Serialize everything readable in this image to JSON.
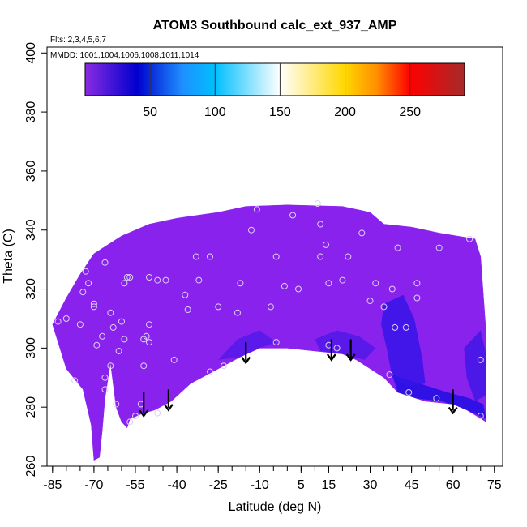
{
  "chart_data": {
    "type": "heatmap",
    "title": "ATOM3 Southbound calc_ext_937_AMP",
    "flights_note": "Flts: 2,3,4,5,6,7",
    "dates_note": "MMDD: 1001,1004,1006,1008,1011,1014",
    "xlabel": "Latitude (deg N)",
    "ylabel": "Theta (C)",
    "xlim": [
      -87,
      78
    ],
    "ylim": [
      260,
      402
    ],
    "x_ticks": [
      -85,
      -70,
      -55,
      -40,
      -25,
      -10,
      5,
      15,
      30,
      45,
      60,
      75
    ],
    "x_tick_labels": [
      "-85",
      "-70",
      "-55",
      "-40",
      "-25",
      "-10",
      "5",
      "15",
      "30",
      "45",
      "60",
      "75"
    ],
    "y_ticks": [
      260,
      280,
      300,
      320,
      340,
      360,
      380,
      400
    ],
    "y_tick_labels": [
      "260",
      "280",
      "300",
      "320",
      "340",
      "360",
      "380",
      "400"
    ],
    "colorbar": {
      "range": [
        0,
        292
      ],
      "ticks": [
        50,
        100,
        150,
        200,
        250
      ],
      "tick_labels": [
        "50",
        "100",
        "150",
        "200",
        "250"
      ],
      "stops": [
        {
          "v": 0,
          "c": "#8a2be2"
        },
        {
          "v": 40,
          "c": "#0000cd"
        },
        {
          "v": 75,
          "c": "#1e90ff"
        },
        {
          "v": 100,
          "c": "#00bfff"
        },
        {
          "v": 150,
          "c": "#ffffff"
        },
        {
          "v": 200,
          "c": "#ffd700"
        },
        {
          "v": 225,
          "c": "#ff8c00"
        },
        {
          "v": 250,
          "c": "#ff0000"
        },
        {
          "v": 292,
          "c": "#a52a2a"
        }
      ]
    },
    "field_color": "#8a22ee",
    "domain_upper": [
      [
        -85,
        308
      ],
      [
        -80,
        317
      ],
      [
        -75,
        325
      ],
      [
        -70,
        332
      ],
      [
        -60,
        338
      ],
      [
        -50,
        342
      ],
      [
        -40,
        344
      ],
      [
        -25,
        346
      ],
      [
        -15,
        348
      ],
      [
        0,
        348.5
      ],
      [
        20,
        348
      ],
      [
        30,
        346
      ],
      [
        35,
        342
      ],
      [
        45,
        341
      ],
      [
        55,
        339
      ],
      [
        68,
        337
      ],
      [
        70,
        331
      ],
      [
        72,
        305
      ]
    ],
    "domain_lower": [
      [
        72,
        275
      ],
      [
        65,
        279
      ],
      [
        60,
        281
      ],
      [
        50,
        282
      ],
      [
        40,
        285
      ],
      [
        35,
        290
      ],
      [
        25,
        296
      ],
      [
        20,
        298
      ],
      [
        10,
        299
      ],
      [
        0,
        300
      ],
      [
        -10,
        300
      ],
      [
        -17,
        297
      ],
      [
        -25,
        293
      ],
      [
        -35,
        288
      ],
      [
        -42,
        282
      ],
      [
        -48,
        279
      ],
      [
        -52,
        278
      ],
      [
        -57,
        276
      ],
      [
        -58,
        273
      ],
      [
        -60,
        275
      ],
      [
        -62,
        280
      ],
      [
        -64,
        295
      ],
      [
        -66,
        283
      ],
      [
        -67,
        272
      ],
      [
        -68,
        263
      ],
      [
        -70,
        262
      ],
      [
        -71,
        274
      ],
      [
        -74,
        286
      ],
      [
        -80,
        293
      ]
    ],
    "blue_patches": [
      {
        "color": "#1f0ee3",
        "poly": [
          [
            38,
            291
          ],
          [
            48,
            288
          ],
          [
            58,
            285
          ],
          [
            66,
            283
          ],
          [
            71,
            281
          ],
          [
            72,
            276
          ],
          [
            65,
            279
          ],
          [
            56,
            282
          ],
          [
            46,
            283
          ],
          [
            40,
            285
          ]
        ]
      },
      {
        "color": "#3514e6",
        "poly": [
          [
            35,
            315
          ],
          [
            42,
            318
          ],
          [
            46,
            310
          ],
          [
            49,
            296
          ],
          [
            50,
            288
          ],
          [
            44,
            287
          ],
          [
            38,
            290
          ],
          [
            36,
            300
          ],
          [
            34,
            308
          ]
        ]
      },
      {
        "color": "#5019e8",
        "poly": [
          [
            10,
            303
          ],
          [
            18,
            306
          ],
          [
            26,
            304
          ],
          [
            32,
            300
          ],
          [
            28,
            296
          ],
          [
            20,
            298
          ],
          [
            12,
            299
          ]
        ]
      },
      {
        "color": "#5219e8",
        "poly": [
          [
            -25,
            296
          ],
          [
            -18,
            303
          ],
          [
            -10,
            306
          ],
          [
            -4,
            302
          ],
          [
            -10,
            300
          ],
          [
            -17,
            297
          ]
        ]
      },
      {
        "color": "#3f16e6",
        "poly": [
          [
            64,
            300
          ],
          [
            70,
            306
          ],
          [
            72,
            298
          ],
          [
            72,
            284
          ],
          [
            68,
            282
          ],
          [
            65,
            290
          ]
        ]
      }
    ],
    "obs_points": [
      [
        -83,
        309
      ],
      [
        -80,
        310
      ],
      [
        -77,
        289
      ],
      [
        -75,
        308
      ],
      [
        -74,
        319
      ],
      [
        -73,
        326
      ],
      [
        -72,
        322
      ],
      [
        -70,
        315
      ],
      [
        -70,
        314
      ],
      [
        -69,
        301
      ],
      [
        -67,
        304
      ],
      [
        -66,
        290
      ],
      [
        -66,
        286
      ],
      [
        -66,
        329
      ],
      [
        -64,
        312
      ],
      [
        -64,
        294
      ],
      [
        -63,
        307
      ],
      [
        -62,
        281
      ],
      [
        -61,
        299
      ],
      [
        -60,
        309
      ],
      [
        -59,
        303
      ],
      [
        -59,
        322
      ],
      [
        -58,
        324
      ],
      [
        -57,
        324
      ],
      [
        -52,
        303
      ],
      [
        -52,
        294
      ],
      [
        -51,
        304
      ],
      [
        -50,
        308
      ],
      [
        -50,
        302
      ],
      [
        -50,
        324
      ],
      [
        -47,
        323
      ],
      [
        -44,
        323
      ],
      [
        -41,
        296
      ],
      [
        -37,
        318
      ],
      [
        -36,
        313
      ],
      [
        -33,
        331
      ],
      [
        -32,
        323
      ],
      [
        -28,
        292
      ],
      [
        -28,
        331
      ],
      [
        -25,
        314
      ],
      [
        -23,
        294
      ],
      [
        -18,
        312
      ],
      [
        -17,
        322
      ],
      [
        -13,
        340
      ],
      [
        -11,
        347
      ],
      [
        -6,
        314
      ],
      [
        -4,
        331
      ],
      [
        -4,
        302
      ],
      [
        -1,
        321
      ],
      [
        2,
        345
      ],
      [
        4,
        320
      ],
      [
        11,
        349
      ],
      [
        12,
        331
      ],
      [
        12,
        342
      ],
      [
        14,
        335
      ],
      [
        15,
        301
      ],
      [
        15,
        322
      ],
      [
        18,
        300
      ],
      [
        20,
        323
      ],
      [
        22,
        331
      ],
      [
        27,
        339
      ],
      [
        30,
        316
      ],
      [
        32,
        322
      ],
      [
        35,
        314
      ],
      [
        37,
        291
      ],
      [
        38,
        320
      ],
      [
        39,
        307
      ],
      [
        40,
        334
      ],
      [
        43,
        307
      ],
      [
        44,
        285
      ],
      [
        47,
        322
      ],
      [
        47,
        317
      ],
      [
        54,
        283
      ],
      [
        55,
        334
      ],
      [
        66,
        337
      ],
      [
        70,
        296
      ],
      [
        70,
        277
      ],
      [
        -55,
        277
      ],
      [
        -57,
        275
      ],
      [
        -47,
        278
      ],
      [
        -53,
        281
      ]
    ],
    "arrows": [
      {
        "x": -52,
        "theta_start": 285,
        "theta_end": 277
      },
      {
        "x": -43,
        "theta_start": 286,
        "theta_end": 279
      },
      {
        "x": -15,
        "theta_start": 302,
        "theta_end": 295
      },
      {
        "x": 16,
        "theta_start": 303,
        "theta_end": 296
      },
      {
        "x": 23,
        "theta_start": 303,
        "theta_end": 296
      },
      {
        "x": 60,
        "theta_start": 286,
        "theta_end": 278
      }
    ]
  }
}
